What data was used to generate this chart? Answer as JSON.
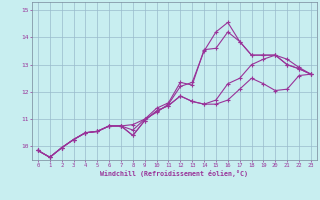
{
  "title": "",
  "xlabel": "Windchill (Refroidissement éolien,°C)",
  "ylabel": "",
  "bg_color": "#c8eef0",
  "line_color": "#993399",
  "grid_color": "#99bbcc",
  "x_ticks": [
    0,
    1,
    2,
    3,
    4,
    5,
    6,
    7,
    8,
    9,
    10,
    11,
    12,
    13,
    14,
    15,
    16,
    17,
    18,
    19,
    20,
    21,
    22,
    23
  ],
  "y_ticks": [
    10,
    11,
    12,
    13,
    14,
    15
  ],
  "xlim": [
    -0.5,
    23.5
  ],
  "ylim": [
    9.5,
    15.3
  ],
  "lines": [
    [
      9.85,
      9.6,
      9.95,
      10.25,
      10.5,
      10.55,
      10.75,
      10.75,
      10.8,
      11.0,
      11.25,
      11.55,
      12.2,
      12.35,
      13.5,
      14.2,
      14.55,
      13.85,
      13.35,
      13.35,
      13.35,
      13.0,
      12.85,
      12.65
    ],
    [
      9.85,
      9.6,
      9.95,
      10.25,
      10.5,
      10.55,
      10.75,
      10.75,
      10.6,
      11.0,
      11.4,
      11.6,
      12.35,
      12.25,
      13.55,
      13.6,
      14.2,
      13.85,
      13.35,
      13.35,
      13.35,
      13.0,
      12.85,
      12.65
    ],
    [
      9.85,
      9.6,
      9.95,
      10.25,
      10.5,
      10.55,
      10.75,
      10.75,
      10.4,
      10.95,
      11.3,
      11.5,
      11.85,
      11.65,
      11.55,
      11.55,
      11.7,
      12.1,
      12.5,
      12.3,
      12.05,
      12.1,
      12.6,
      12.65
    ],
    [
      9.85,
      9.6,
      9.95,
      10.25,
      10.5,
      10.55,
      10.75,
      10.75,
      10.4,
      10.95,
      11.3,
      11.5,
      11.85,
      11.65,
      11.55,
      11.7,
      12.3,
      12.5,
      13.0,
      13.2,
      13.35,
      13.2,
      12.9,
      12.65
    ]
  ]
}
